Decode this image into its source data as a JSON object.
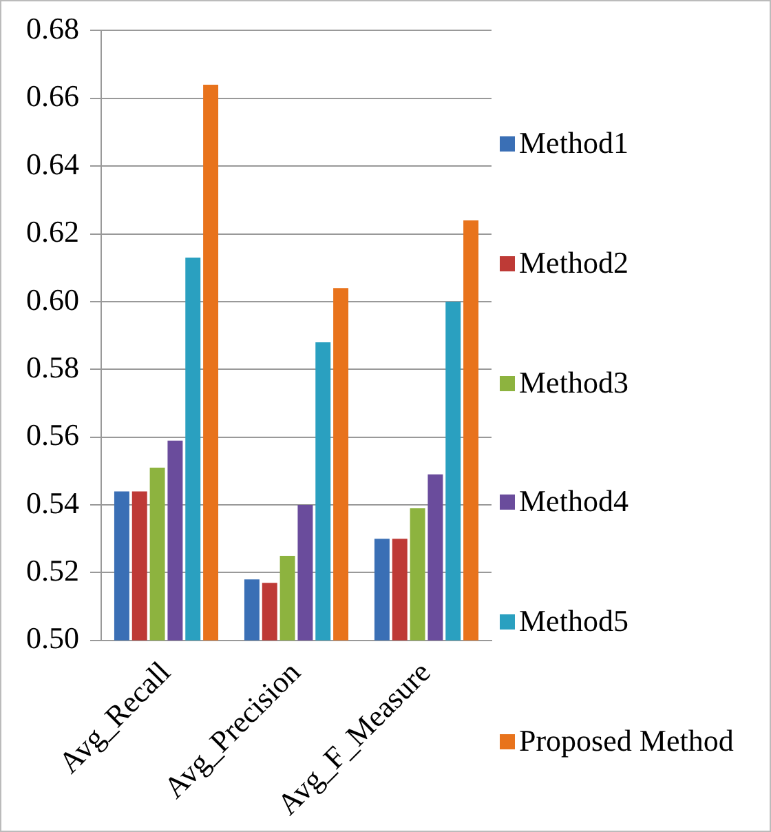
{
  "chart_data": {
    "type": "bar",
    "categories": [
      "Avg_Recall",
      "Avg_Precision",
      "Avg_F_Measure"
    ],
    "series": [
      {
        "name": "Method1",
        "color": "#3a6fb5",
        "values": [
          0.544,
          0.518,
          0.53
        ]
      },
      {
        "name": "Method2",
        "color": "#be3a36",
        "values": [
          0.544,
          0.517,
          0.53
        ]
      },
      {
        "name": "Method3",
        "color": "#8db33f",
        "values": [
          0.551,
          0.525,
          0.539
        ]
      },
      {
        "name": "Method4",
        "color": "#6a4c9c",
        "values": [
          0.559,
          0.54,
          0.549
        ]
      },
      {
        "name": "Method5",
        "color": "#2aa0c0",
        "values": [
          0.613,
          0.588,
          0.6
        ]
      },
      {
        "name": "Proposed Method",
        "color": "#e8731c",
        "values": [
          0.664,
          0.604,
          0.624
        ]
      }
    ],
    "ylim": [
      0.5,
      0.68
    ],
    "yticks": [
      {
        "value": 0.5,
        "label": "0.50"
      },
      {
        "value": 0.52,
        "label": "0.52"
      },
      {
        "value": 0.54,
        "label": "0.54"
      },
      {
        "value": 0.56,
        "label": "0.56"
      },
      {
        "value": 0.58,
        "label": "0.58"
      },
      {
        "value": 0.6,
        "label": "0.60"
      },
      {
        "value": 0.62,
        "label": "0.62"
      },
      {
        "value": 0.64,
        "label": "0.64"
      },
      {
        "value": 0.66,
        "label": "0.66"
      },
      {
        "value": 0.68,
        "label": "0.68"
      }
    ],
    "grid": "y",
    "legend": "right"
  }
}
